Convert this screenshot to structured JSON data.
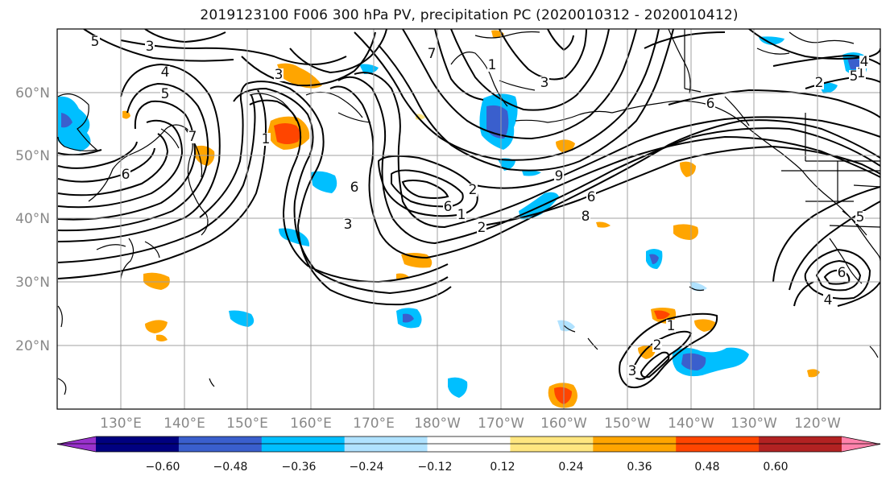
{
  "title": "2019123100 F006 300 hPa PV, precipitation PC (2020010312 - 2020010412)",
  "axes": {
    "lat_labels": [
      "60°N",
      "50°N",
      "40°N",
      "30°N",
      "20°N"
    ],
    "lat_values": [
      60,
      50,
      40,
      30,
      20
    ],
    "lon_labels": [
      "130°E",
      "140°E",
      "150°E",
      "160°E",
      "170°E",
      "180°W",
      "170°W",
      "160°W",
      "150°W",
      "140°W",
      "130°W",
      "120°W"
    ],
    "lon_values": [
      130,
      140,
      150,
      160,
      170,
      180,
      190,
      200,
      210,
      220,
      230,
      240
    ],
    "lon_range": [
      120,
      250
    ],
    "lat_range": [
      10,
      70
    ],
    "grid": true
  },
  "contour_labels": [
    "5",
    "3",
    "4",
    "5",
    "3",
    "7",
    "6",
    "1",
    "2",
    "6",
    "1",
    "2",
    "3",
    "6",
    "7",
    "1",
    "3",
    "9",
    "8",
    "6",
    "6",
    "5",
    "4",
    "1",
    "2",
    "3",
    "1",
    "2",
    "5",
    "4",
    "6"
  ],
  "colorbar": {
    "ticks": [
      "−0.60",
      "−0.48",
      "−0.36",
      "−0.24",
      "−0.12",
      "0.12",
      "0.24",
      "0.36",
      "0.48",
      "0.60"
    ],
    "bins": [
      {
        "color": "#9932cc"
      },
      {
        "color": "#000080"
      },
      {
        "color": "#3a5fcd"
      },
      {
        "color": "#00bfff"
      },
      {
        "color": "#b0e2ff"
      },
      {
        "color": "#ffffff"
      },
      {
        "color": "#ffe680"
      },
      {
        "color": "#ffa500"
      },
      {
        "color": "#ff4500"
      },
      {
        "color": "#b22222"
      },
      {
        "color": "#ff82ab"
      }
    ],
    "extend": "both"
  },
  "colors": {
    "contour": "#000000",
    "coast": "#000000",
    "grid": "#a0a0a0",
    "frame": "#000000"
  }
}
